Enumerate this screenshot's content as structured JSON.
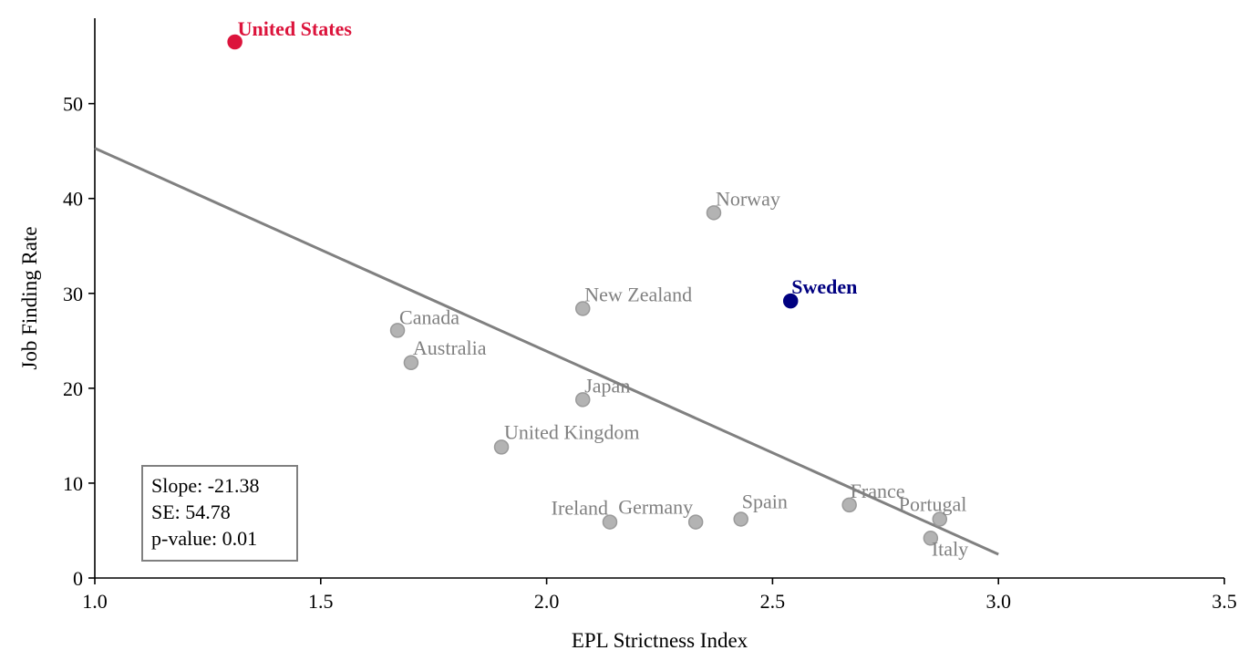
{
  "chart_data": {
    "type": "scatter",
    "xlabel": "EPL Strictness Index",
    "ylabel": "Job Finding Rate",
    "xlim": [
      1.0,
      3.5
    ],
    "ylim": [
      0,
      59
    ],
    "x_ticks": [
      "1.0",
      "1.5",
      "2.0",
      "2.5",
      "3.0",
      "3.5"
    ],
    "y_ticks": [
      "0",
      "10",
      "20",
      "30",
      "40",
      "50"
    ],
    "grid": false,
    "points": [
      {
        "label": "United States",
        "x": 1.31,
        "y": 56.5,
        "highlight": "red"
      },
      {
        "label": "Norway",
        "x": 2.37,
        "y": 38.5,
        "highlight": "none"
      },
      {
        "label": "Sweden",
        "x": 2.54,
        "y": 29.2,
        "highlight": "navy"
      },
      {
        "label": "New Zealand",
        "x": 2.08,
        "y": 28.4,
        "highlight": "none"
      },
      {
        "label": "Canada",
        "x": 1.67,
        "y": 26.1,
        "highlight": "none"
      },
      {
        "label": "Australia",
        "x": 1.7,
        "y": 22.7,
        "highlight": "none"
      },
      {
        "label": "Japan",
        "x": 2.08,
        "y": 18.8,
        "highlight": "none"
      },
      {
        "label": "United Kingdom",
        "x": 1.9,
        "y": 13.8,
        "highlight": "none"
      },
      {
        "label": "Ireland",
        "x": 2.14,
        "y": 5.9,
        "highlight": "none"
      },
      {
        "label": "Germany",
        "x": 2.33,
        "y": 5.9,
        "highlight": "none"
      },
      {
        "label": "Spain",
        "x": 2.43,
        "y": 6.2,
        "highlight": "none"
      },
      {
        "label": "France",
        "x": 2.67,
        "y": 7.7,
        "highlight": "none"
      },
      {
        "label": "Portugal",
        "x": 2.87,
        "y": 6.2,
        "highlight": "none"
      },
      {
        "label": "Italy",
        "x": 2.85,
        "y": 4.2,
        "highlight": "none"
      }
    ],
    "fit_line": {
      "x": [
        1.0,
        3.0
      ],
      "y": [
        45.3,
        2.5
      ]
    },
    "annotation": {
      "slope": "Slope: -21.38",
      "se": "SE: 54.78",
      "p_value": "p-value: 0.01"
    },
    "colors": {
      "default_point": "#b3b3b3",
      "default_label": "#808080",
      "red": "#dc143c",
      "navy": "#000080",
      "fit_line": "#808080"
    }
  }
}
